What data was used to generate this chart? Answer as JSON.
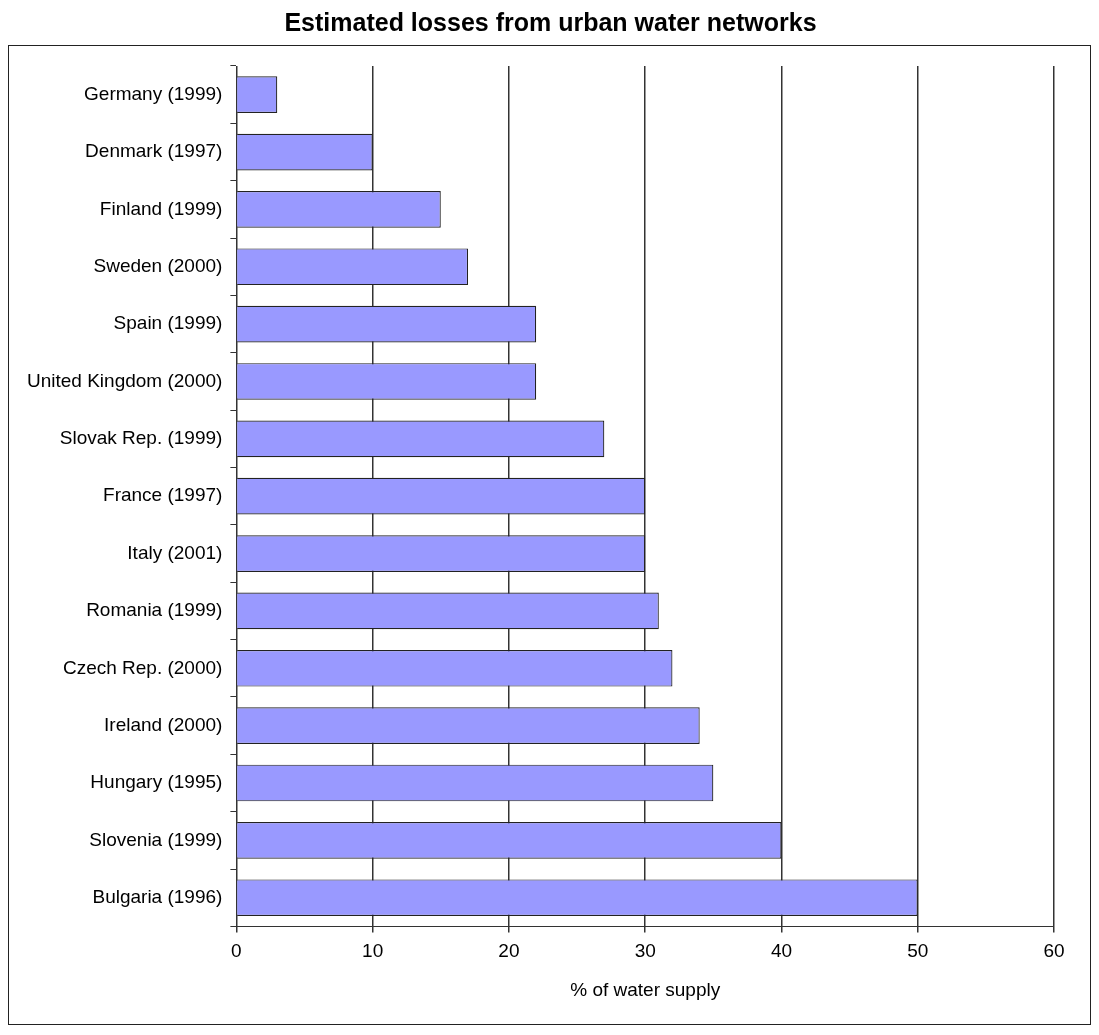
{
  "chart_data": {
    "type": "bar",
    "orientation": "horizontal",
    "title": "Estimated losses from urban water networks",
    "xlabel": "% of water supply",
    "categories": [
      "Germany (1999)",
      "Denmark (1997)",
      "Finland (1999)",
      "Sweden (2000)",
      "Spain (1999)",
      "United Kingdom (2000)",
      "Slovak Rep. (1999)",
      "France (1997)",
      "Italy (2001)",
      "Romania (1999)",
      "Czech Rep. (2000)",
      "Ireland (2000)",
      "Hungary (1995)",
      "Slovenia (1999)",
      "Bulgaria (1996)"
    ],
    "values": [
      3,
      10,
      15,
      17,
      22,
      22,
      27,
      30,
      30,
      31,
      32,
      34,
      35,
      40,
      50
    ],
    "color": "#9999ff",
    "xlim": [
      0,
      60
    ],
    "xticks": [
      0,
      10,
      20,
      30,
      40,
      50,
      60
    ],
    "grid": "x",
    "legend": false
  }
}
